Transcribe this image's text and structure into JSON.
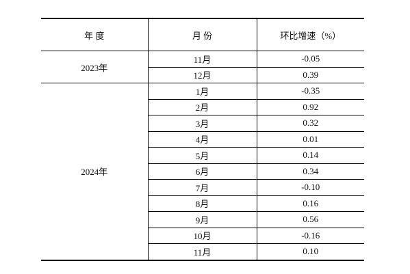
{
  "table": {
    "header": [
      "年 度",
      "月 份",
      "环比增速（%）"
    ],
    "groups": [
      {
        "year": "2023年",
        "rows": [
          [
            "11月",
            "-0.05"
          ],
          [
            "12月",
            "0.39"
          ]
        ]
      },
      {
        "year": "2024年",
        "rows": [
          [
            "1月",
            "-0.35"
          ],
          [
            "2月",
            "0.92"
          ],
          [
            "3月",
            "0.32"
          ],
          [
            "4月",
            "0.01"
          ],
          [
            "5月",
            "0.14"
          ],
          [
            "6月",
            "0.34"
          ],
          [
            "7月",
            "-0.10"
          ],
          [
            "8月",
            "0.16"
          ],
          [
            "9月",
            "0.56"
          ],
          [
            "10月",
            "-0.16"
          ],
          [
            "11月",
            "0.10"
          ]
        ]
      }
    ]
  }
}
